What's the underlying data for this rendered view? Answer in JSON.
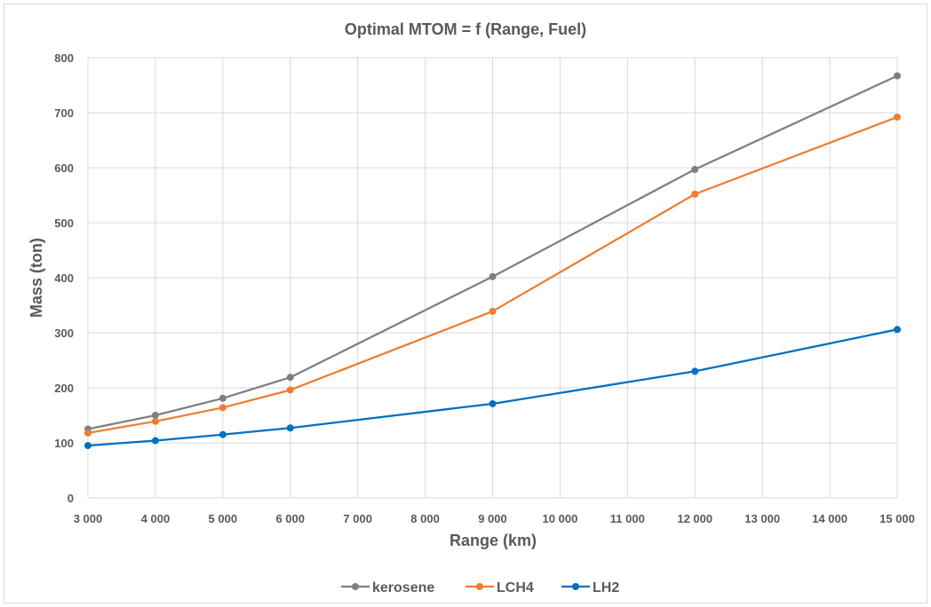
{
  "chart_data": {
    "type": "line",
    "title": "Optimal MTOM = f (Range, Fuel)",
    "xlabel": "Range (km)",
    "ylabel": "Mass (ton)",
    "xlim": [
      3000,
      15000
    ],
    "ylim": [
      0,
      800
    ],
    "x_ticks": [
      "3 000",
      "4 000",
      "5 000",
      "6 000",
      "7 000",
      "8 000",
      "9 000",
      "10 000",
      "11 000",
      "12 000",
      "13 000",
      "14 000",
      "15 000"
    ],
    "x_tick_values": [
      3000,
      4000,
      5000,
      6000,
      7000,
      8000,
      9000,
      10000,
      11000,
      12000,
      13000,
      14000,
      15000
    ],
    "y_ticks": [
      "0",
      "100",
      "200",
      "300",
      "400",
      "500",
      "600",
      "700",
      "800"
    ],
    "y_tick_values": [
      0,
      100,
      200,
      300,
      400,
      500,
      600,
      700,
      800
    ],
    "grid": true,
    "legend_position": "bottom",
    "x": [
      3000,
      4000,
      5000,
      6000,
      9000,
      12000,
      15000
    ],
    "series": [
      {
        "name": "kerosene",
        "color": "#7f7f7f",
        "values": [
          125,
          150,
          181,
          219,
          402,
          597,
          767
        ]
      },
      {
        "name": "LCH4",
        "color": "#ed7d31",
        "values": [
          118,
          139,
          164,
          196,
          339,
          552,
          692
        ]
      },
      {
        "name": "LH2",
        "color": "#0070c0",
        "values": [
          95,
          104,
          115,
          127,
          171,
          230,
          306
        ]
      }
    ]
  }
}
